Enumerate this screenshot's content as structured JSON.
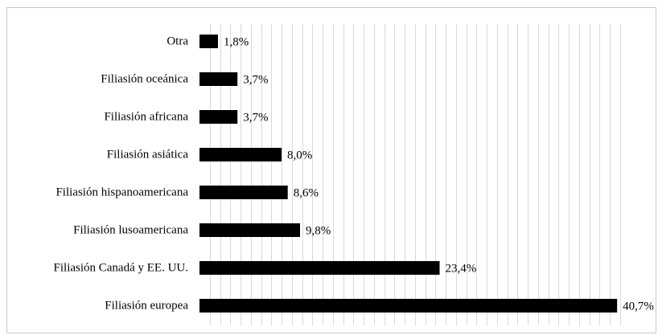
{
  "chart_data": {
    "type": "bar",
    "orientation": "horizontal",
    "categories": [
      "Otra",
      "Filiasión oceánica",
      "Filiasión africana",
      "Filiasión asiática",
      "Filiasión hispanoamericana",
      "Filiasión lusoamericana",
      "Filiasión Canadá y EE. UU.",
      "Filiasión europea"
    ],
    "values": [
      1.8,
      3.7,
      3.7,
      8.0,
      8.6,
      9.8,
      23.4,
      40.7
    ],
    "value_labels": [
      "1,8%",
      "3,7%",
      "3,7%",
      "8,0%",
      "8,6%",
      "9,8%",
      "23,4%",
      "40,7%"
    ],
    "xlim": [
      0,
      41
    ],
    "grid": true,
    "bar_color": "#000000",
    "grid_color": "#d9d9d9"
  }
}
